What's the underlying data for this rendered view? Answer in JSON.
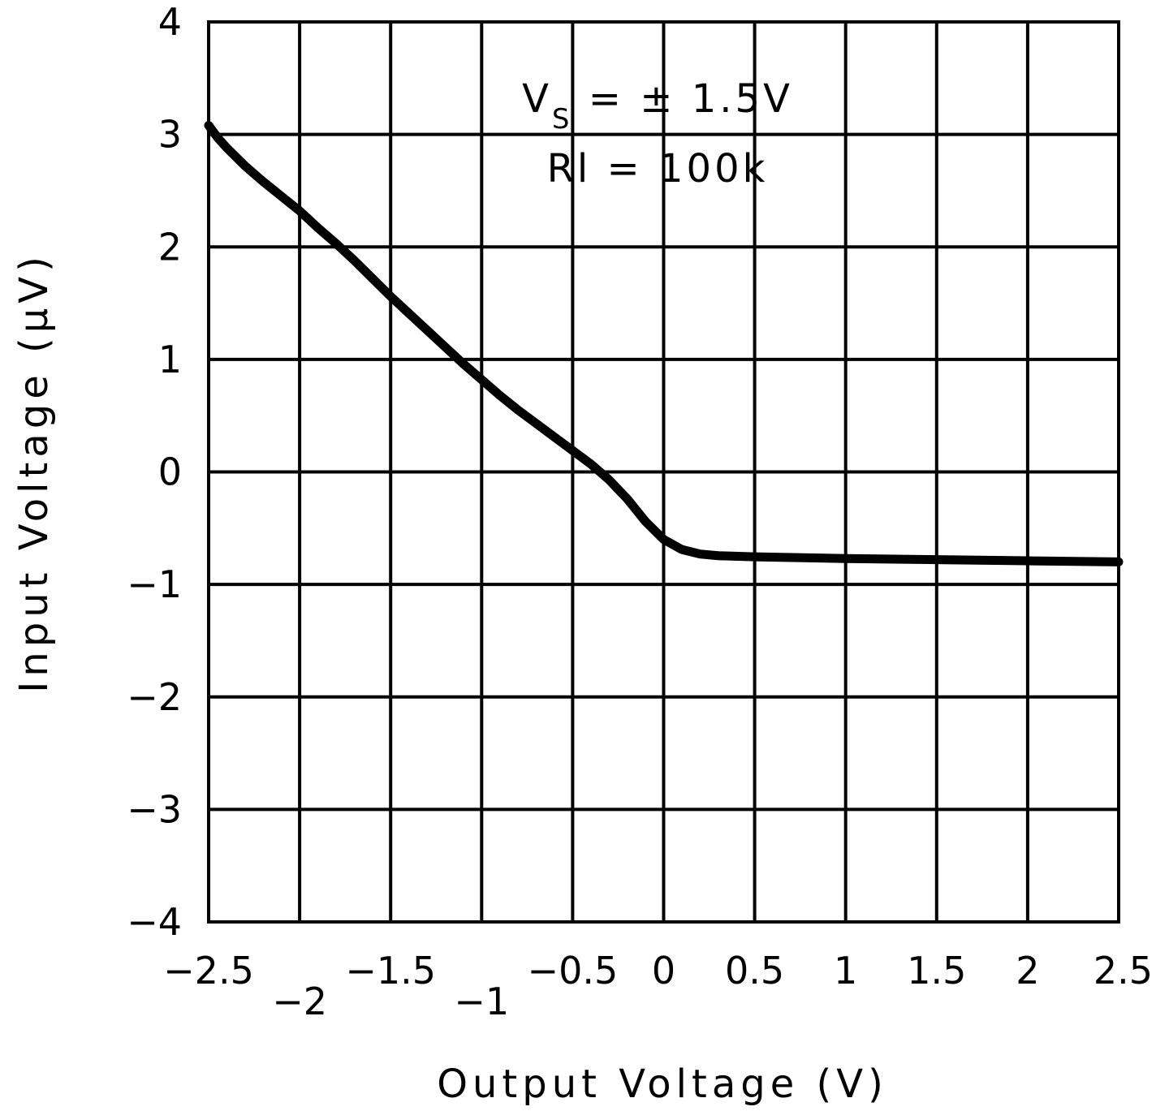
{
  "chart_data": {
    "type": "line",
    "title": "",
    "xlabel": "Output Voltage (V)",
    "ylabel": "Input Voltage (μV)",
    "xlim": [
      -2.5,
      2.5
    ],
    "ylim": [
      -4,
      4
    ],
    "grid": true,
    "x_ticks": [
      {
        "value": -2.5,
        "label": "−2.5"
      },
      {
        "value": -2,
        "label": "−2"
      },
      {
        "value": -1.5,
        "label": "−1.5"
      },
      {
        "value": -1,
        "label": "−1"
      },
      {
        "value": -0.5,
        "label": "−0.5"
      },
      {
        "value": 0,
        "label": "0"
      },
      {
        "value": 0.5,
        "label": "0.5"
      },
      {
        "value": 1,
        "label": "1"
      },
      {
        "value": 1.5,
        "label": "1.5"
      },
      {
        "value": 2,
        "label": "2"
      },
      {
        "value": 2.5,
        "label": "2.5"
      }
    ],
    "y_ticks": [
      {
        "value": 4,
        "label": "4"
      },
      {
        "value": 3,
        "label": "3"
      },
      {
        "value": 2,
        "label": "2"
      },
      {
        "value": 1,
        "label": "1"
      },
      {
        "value": 0,
        "label": "0"
      },
      {
        "value": -1,
        "label": "−1"
      },
      {
        "value": -2,
        "label": "−2"
      },
      {
        "value": -3,
        "label": "−3"
      },
      {
        "value": -4,
        "label": "−4"
      }
    ],
    "annotations": {
      "line1_prefix": "V",
      "line1_sub": "S",
      "line1_rest": " = ± 1.5V",
      "line2": "Rl = 100k"
    },
    "series": [
      {
        "color": "#000000",
        "points": [
          [
            -2.5,
            3.08
          ],
          [
            -2.45,
            2.97
          ],
          [
            -2.4,
            2.88
          ],
          [
            -2.3,
            2.72
          ],
          [
            -2.2,
            2.58
          ],
          [
            -2.1,
            2.45
          ],
          [
            -2.0,
            2.32
          ],
          [
            -1.9,
            2.17
          ],
          [
            -1.8,
            2.03
          ],
          [
            -1.7,
            1.88
          ],
          [
            -1.6,
            1.72
          ],
          [
            -1.5,
            1.56
          ],
          [
            -1.4,
            1.41
          ],
          [
            -1.3,
            1.26
          ],
          [
            -1.2,
            1.11
          ],
          [
            -1.1,
            0.96
          ],
          [
            -1.0,
            0.82
          ],
          [
            -0.9,
            0.68
          ],
          [
            -0.8,
            0.55
          ],
          [
            -0.7,
            0.43
          ],
          [
            -0.6,
            0.31
          ],
          [
            -0.5,
            0.19
          ],
          [
            -0.4,
            0.07
          ],
          [
            -0.3,
            -0.07
          ],
          [
            -0.2,
            -0.24
          ],
          [
            -0.1,
            -0.44
          ],
          [
            0.0,
            -0.6
          ],
          [
            0.1,
            -0.69
          ],
          [
            0.2,
            -0.73
          ],
          [
            0.3,
            -0.745
          ],
          [
            0.5,
            -0.755
          ],
          [
            1.0,
            -0.77
          ],
          [
            1.5,
            -0.78
          ],
          [
            2.0,
            -0.79
          ],
          [
            2.5,
            -0.8
          ]
        ]
      }
    ]
  }
}
